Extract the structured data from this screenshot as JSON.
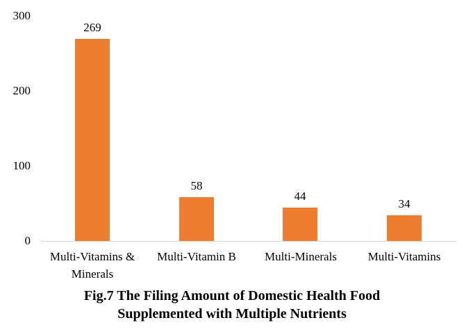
{
  "chart_data": {
    "type": "bar",
    "title_lines": [
      "Fig.7 The Filing Amount of Domestic Health Food",
      "Supplemented with Multiple Nutrients"
    ],
    "categories": [
      "Multi-Vitamins & Minerals",
      "Multi-Vitamin B",
      "Multi-Minerals",
      "Multi-Vitamins"
    ],
    "values": [
      269,
      58,
      44,
      34
    ],
    "data_labels": [
      "269",
      "58",
      "44",
      "34"
    ],
    "yticks": [
      0,
      100,
      200,
      300
    ],
    "ylim": [
      0,
      300
    ],
    "xlabel": "",
    "ylabel": "",
    "grid": false,
    "legend_position": "none",
    "bar_color": "#ED7D31",
    "axis_line_color": "#D9D9D9",
    "text_color": "#000000",
    "background_color": "#FFFFFF"
  }
}
